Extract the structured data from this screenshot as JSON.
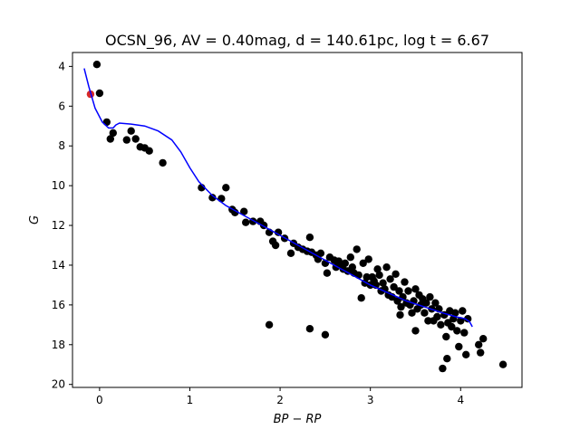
{
  "chart_data": {
    "type": "scatter",
    "title": "OCSN_96, AV = 0.40mag, d = 140.61pc, log t = 6.67",
    "xlabel": "BP − RP",
    "ylabel": "G",
    "xlim": [
      -0.3,
      4.68
    ],
    "ylim": [
      20.15,
      3.3
    ],
    "y_inverted": true,
    "grid": false,
    "xticks": [
      0,
      1,
      2,
      3,
      4
    ],
    "yticks": [
      4,
      6,
      8,
      10,
      12,
      14,
      16,
      18,
      20
    ],
    "colors": {
      "members": "#000000",
      "highlight": "#d62728",
      "isochrone": "#0000ff"
    },
    "highlight_point": {
      "x": -0.1,
      "y": 5.4
    },
    "points": [
      [
        -0.03,
        3.9
      ],
      [
        0.0,
        5.35
      ],
      [
        0.08,
        6.8
      ],
      [
        0.12,
        7.65
      ],
      [
        0.15,
        7.35
      ],
      [
        0.3,
        7.7
      ],
      [
        0.35,
        7.25
      ],
      [
        0.4,
        7.65
      ],
      [
        0.45,
        8.05
      ],
      [
        0.5,
        8.1
      ],
      [
        0.55,
        8.25
      ],
      [
        0.7,
        8.85
      ],
      [
        1.13,
        10.1
      ],
      [
        1.25,
        10.6
      ],
      [
        1.35,
        10.65
      ],
      [
        1.4,
        10.1
      ],
      [
        1.47,
        11.2
      ],
      [
        1.5,
        11.35
      ],
      [
        1.6,
        11.3
      ],
      [
        1.62,
        11.85
      ],
      [
        1.7,
        11.8
      ],
      [
        1.78,
        11.8
      ],
      [
        1.82,
        12.0
      ],
      [
        1.88,
        12.35
      ],
      [
        1.92,
        12.8
      ],
      [
        1.95,
        13.0
      ],
      [
        1.98,
        12.35
      ],
      [
        2.05,
        12.65
      ],
      [
        2.12,
        13.4
      ],
      [
        2.15,
        12.9
      ],
      [
        2.2,
        13.1
      ],
      [
        2.25,
        13.2
      ],
      [
        2.3,
        13.3
      ],
      [
        2.33,
        12.6
      ],
      [
        2.35,
        13.35
      ],
      [
        2.4,
        13.5
      ],
      [
        2.42,
        13.7
      ],
      [
        2.45,
        13.4
      ],
      [
        2.5,
        13.9
      ],
      [
        2.52,
        14.4
      ],
      [
        2.55,
        13.6
      ],
      [
        2.6,
        13.75
      ],
      [
        2.62,
        14.1
      ],
      [
        2.65,
        13.8
      ],
      [
        2.68,
        14.0
      ],
      [
        2.7,
        14.2
      ],
      [
        2.72,
        13.9
      ],
      [
        2.75,
        14.3
      ],
      [
        2.78,
        13.6
      ],
      [
        2.8,
        14.1
      ],
      [
        2.82,
        14.4
      ],
      [
        2.85,
        13.2
      ],
      [
        2.87,
        14.5
      ],
      [
        2.9,
        15.65
      ],
      [
        2.92,
        13.9
      ],
      [
        2.94,
        14.9
      ],
      [
        2.96,
        14.6
      ],
      [
        2.98,
        13.7
      ],
      [
        3.0,
        15.0
      ],
      [
        3.02,
        14.6
      ],
      [
        3.04,
        14.8
      ],
      [
        3.06,
        15.0
      ],
      [
        3.08,
        14.2
      ],
      [
        3.1,
        14.5
      ],
      [
        3.12,
        15.3
      ],
      [
        3.14,
        14.9
      ],
      [
        3.16,
        15.2
      ],
      [
        3.18,
        14.1
      ],
      [
        3.2,
        15.5
      ],
      [
        3.22,
        14.7
      ],
      [
        3.24,
        15.6
      ],
      [
        3.26,
        15.1
      ],
      [
        3.28,
        14.45
      ],
      [
        3.3,
        15.8
      ],
      [
        3.32,
        15.3
      ],
      [
        3.33,
        16.5
      ],
      [
        3.34,
        16.1
      ],
      [
        3.36,
        15.6
      ],
      [
        3.38,
        14.85
      ],
      [
        3.4,
        15.9
      ],
      [
        3.42,
        15.3
      ],
      [
        3.44,
        16.0
      ],
      [
        3.46,
        16.4
      ],
      [
        3.48,
        15.8
      ],
      [
        3.5,
        15.2
      ],
      [
        3.5,
        17.3
      ],
      [
        3.52,
        16.2
      ],
      [
        3.54,
        15.5
      ],
      [
        3.56,
        16.0
      ],
      [
        3.58,
        15.7
      ],
      [
        3.6,
        16.4
      ],
      [
        3.62,
        15.9
      ],
      [
        3.64,
        16.8
      ],
      [
        3.66,
        15.6
      ],
      [
        3.68,
        16.2
      ],
      [
        3.7,
        16.8
      ],
      [
        3.72,
        15.9
      ],
      [
        3.74,
        16.6
      ],
      [
        3.76,
        16.2
      ],
      [
        3.78,
        17.0
      ],
      [
        3.8,
        19.2
      ],
      [
        3.82,
        16.5
      ],
      [
        3.84,
        17.6
      ],
      [
        3.85,
        18.7
      ],
      [
        3.86,
        16.9
      ],
      [
        3.88,
        16.3
      ],
      [
        3.9,
        17.1
      ],
      [
        3.92,
        16.7
      ],
      [
        3.94,
        16.4
      ],
      [
        3.96,
        17.3
      ],
      [
        3.98,
        18.1
      ],
      [
        4.0,
        16.8
      ],
      [
        4.02,
        16.3
      ],
      [
        4.04,
        17.4
      ],
      [
        4.06,
        18.5
      ],
      [
        4.08,
        16.7
      ],
      [
        4.2,
        18.0
      ],
      [
        4.22,
        18.4
      ],
      [
        4.25,
        17.7
      ],
      [
        4.47,
        19.0
      ],
      [
        1.88,
        17.0
      ],
      [
        2.33,
        17.2
      ],
      [
        2.5,
        17.5
      ]
    ],
    "isochrone": [
      [
        -0.17,
        4.1
      ],
      [
        -0.12,
        5.0
      ],
      [
        -0.05,
        6.1
      ],
      [
        0.03,
        6.8
      ],
      [
        0.1,
        7.1
      ],
      [
        0.15,
        7.1
      ],
      [
        0.18,
        6.95
      ],
      [
        0.22,
        6.85
      ],
      [
        0.35,
        6.9
      ],
      [
        0.5,
        7.0
      ],
      [
        0.65,
        7.25
      ],
      [
        0.8,
        7.7
      ],
      [
        0.9,
        8.3
      ],
      [
        1.0,
        9.1
      ],
      [
        1.1,
        9.8
      ],
      [
        1.25,
        10.5
      ],
      [
        1.4,
        11.0
      ],
      [
        1.6,
        11.5
      ],
      [
        1.8,
        12.0
      ],
      [
        2.0,
        12.5
      ],
      [
        2.2,
        13.0
      ],
      [
        2.4,
        13.5
      ],
      [
        2.6,
        14.0
      ],
      [
        2.8,
        14.5
      ],
      [
        3.0,
        15.0
      ],
      [
        3.2,
        15.4
      ],
      [
        3.4,
        15.8
      ],
      [
        3.6,
        16.1
      ],
      [
        3.8,
        16.4
      ],
      [
        3.95,
        16.6
      ],
      [
        4.05,
        16.7
      ],
      [
        4.1,
        16.85
      ],
      [
        4.13,
        17.1
      ]
    ]
  }
}
